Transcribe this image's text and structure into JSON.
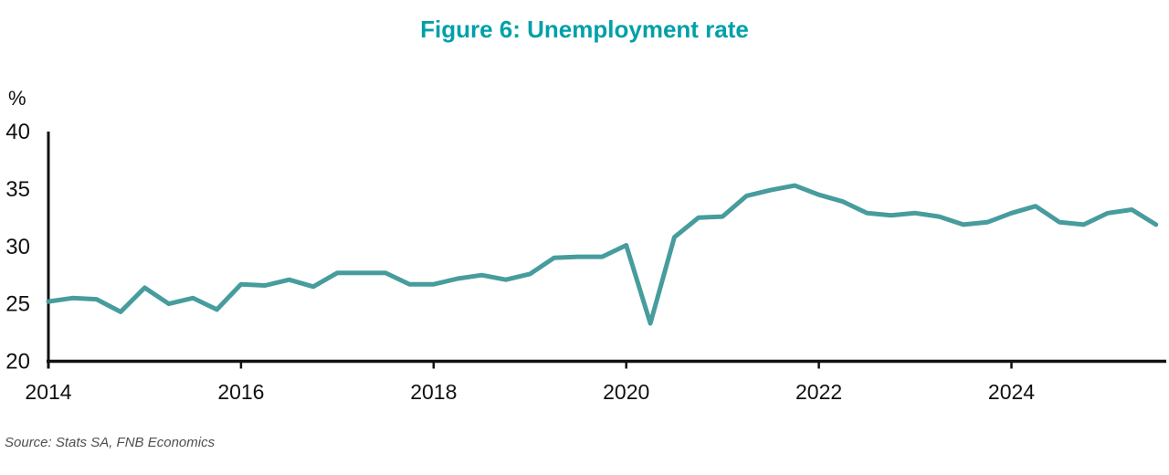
{
  "chart_data": {
    "type": "line",
    "title": "Figure 6: Unemployment rate",
    "ylabel": "%",
    "xlabel": "",
    "source": "Source: Stats SA, FNB Economics",
    "x_start": 2014,
    "points_per_year": 4,
    "x_tick_labels": [
      "2014",
      "2016",
      "2018",
      "2020",
      "2022",
      "2024"
    ],
    "y_tick_labels": [
      "20",
      "25",
      "30",
      "35",
      "40"
    ],
    "ylim": [
      20,
      40
    ],
    "grid": false,
    "legend_position": "none",
    "colors": {
      "line": "#479c9d",
      "title": "#00a0a8",
      "axis": "#111111",
      "source_text": "#4f4f4f"
    },
    "series": [
      {
        "name": "Unemployment rate (%)",
        "frequency": "quarterly, 2014Q1 - 2025Q3",
        "values": [
          25.2,
          25.5,
          25.4,
          24.3,
          26.4,
          25.0,
          25.5,
          24.5,
          26.7,
          26.6,
          27.1,
          26.5,
          27.7,
          27.7,
          27.7,
          26.7,
          26.7,
          27.2,
          27.5,
          27.1,
          27.6,
          29.0,
          29.1,
          29.1,
          30.1,
          23.3,
          30.8,
          32.5,
          32.6,
          34.4,
          34.9,
          35.3,
          34.5,
          33.9,
          32.9,
          32.7,
          32.9,
          32.6,
          31.9,
          32.1,
          32.9,
          33.5,
          32.1,
          31.9,
          32.9,
          33.2,
          31.9
        ]
      }
    ]
  }
}
